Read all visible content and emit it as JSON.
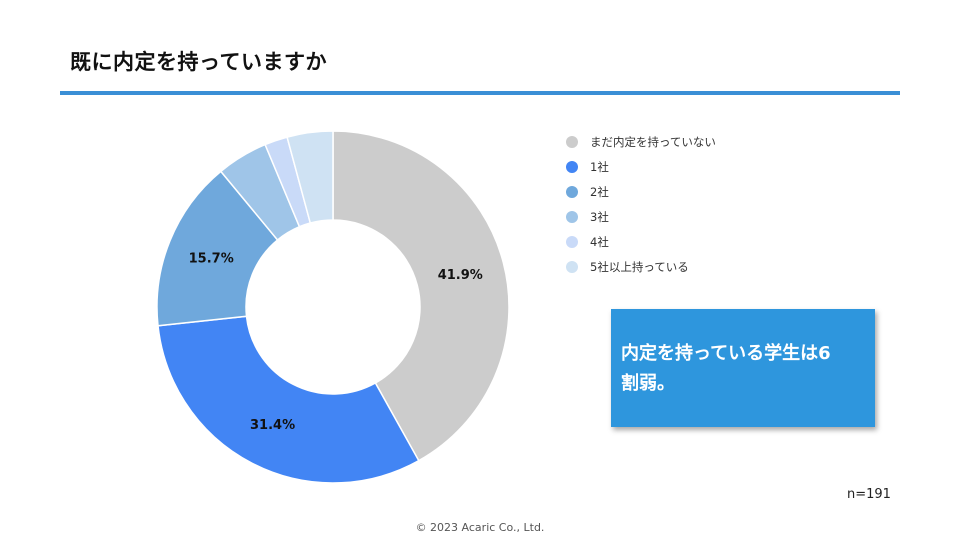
{
  "title": "既に内定を持っていますか",
  "chart_data": {
    "type": "pie",
    "style": "donut",
    "title": "既に内定を持っていますか",
    "categories": [
      "まだ内定を持っていない",
      "1社",
      "2社",
      "3社",
      "4社",
      "5社以上持っている"
    ],
    "values": [
      41.9,
      31.4,
      15.7,
      4.7,
      2.1,
      4.2
    ],
    "data_labels": [
      "41.9%",
      "31.4%",
      "15.7%",
      "",
      "",
      ""
    ],
    "colors": [
      "#cccccc",
      "#4285f4",
      "#6fa8dc",
      "#9fc5e8",
      "#c9daf8",
      "#cfe2f3"
    ],
    "legend_position": "right"
  },
  "callout": {
    "line1": "内定を持っている学生は6",
    "line2": "割弱。"
  },
  "sample_size": "n=191",
  "footer": "© 2023 Acaric Co., Ltd."
}
